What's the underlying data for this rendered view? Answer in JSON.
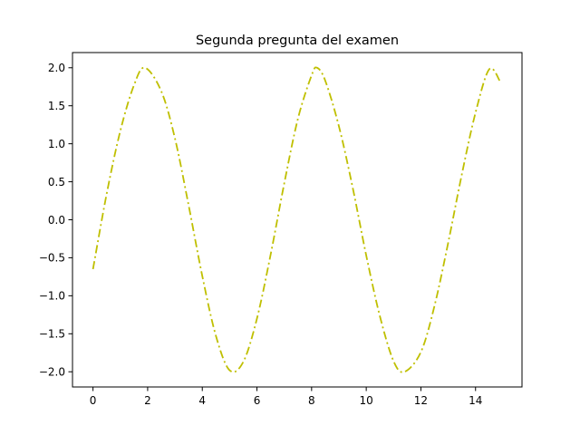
{
  "chart_data": {
    "type": "line",
    "title": "Segunda pregunta del examen",
    "xlabel": "",
    "ylabel": "",
    "xlim": [
      -0.75,
      15.7
    ],
    "ylim": [
      -2.2,
      2.2
    ],
    "xticks": [
      0,
      2,
      4,
      6,
      8,
      10,
      12,
      14
    ],
    "xtick_labels": [
      "0",
      "2",
      "4",
      "6",
      "8",
      "10",
      "12",
      "14"
    ],
    "yticks": [
      -2.0,
      -1.5,
      -1.0,
      -0.5,
      0.0,
      0.5,
      1.0,
      1.5,
      2.0
    ],
    "ytick_labels": [
      "−2.0",
      "−1.5",
      "−1.0",
      "−0.5",
      "0.0",
      "0.5",
      "1.0",
      "1.5",
      "2.0"
    ],
    "grid": false,
    "legend": "none",
    "series": [
      {
        "color": "#bfbf00",
        "linestyle": "dashdot",
        "x": [
          0,
          0.5,
          1.0,
          1.5,
          1.9,
          2.5,
          3.0,
          3.5,
          4.0,
          4.5,
          5.0,
          5.5,
          6.0,
          6.5,
          7.0,
          7.5,
          8.0,
          8.2,
          8.5,
          9.0,
          9.5,
          10.0,
          10.5,
          11.0,
          11.4,
          12.0,
          12.5,
          13.0,
          13.5,
          14.0,
          14.5,
          14.9
        ],
        "y": [
          -0.65,
          0.34,
          1.17,
          1.77,
          2.0,
          1.69,
          1.07,
          0.19,
          -0.74,
          -1.53,
          -1.98,
          -1.87,
          -1.3,
          -0.46,
          0.48,
          1.33,
          1.9,
          2.0,
          1.83,
          1.23,
          0.43,
          -0.47,
          -1.27,
          -1.86,
          -2.0,
          -1.74,
          -1.13,
          -0.3,
          0.6,
          1.41,
          1.98,
          1.82
        ]
      }
    ]
  }
}
